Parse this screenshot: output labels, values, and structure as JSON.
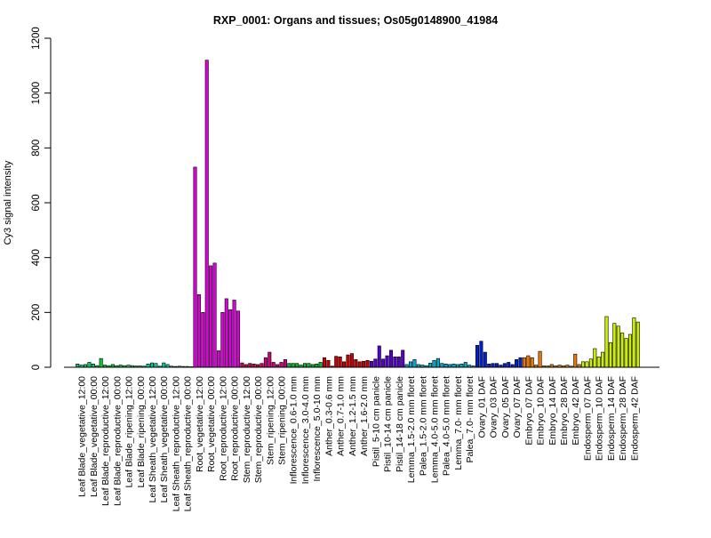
{
  "chart_data": {
    "type": "bar",
    "title": "RXP_0001: Organs and tissues; Os05g0148900_41984",
    "ylabel": "Cy3 signal intensity",
    "xlabel": "",
    "ylim": [
      0,
      1200
    ],
    "yticks": [
      0,
      200,
      400,
      600,
      800,
      1000,
      1200
    ],
    "grid": false,
    "bars": [
      {
        "v": 12,
        "c": "#00cc66"
      },
      {
        "v": 8,
        "c": "#00cc66"
      },
      {
        "v": 10,
        "c": "#00cc66"
      },
      {
        "v": 18,
        "c": "#00cc66"
      },
      {
        "v": 12,
        "c": "#00cc66"
      },
      {
        "v": 6,
        "c": "#00cc66"
      },
      {
        "v": 32,
        "c": "#00cc33"
      },
      {
        "v": 8,
        "c": "#00cc33"
      },
      {
        "v": 6,
        "c": "#00cc33"
      },
      {
        "v": 10,
        "c": "#00cc33"
      },
      {
        "v": 6,
        "c": "#00cc33"
      },
      {
        "v": 8,
        "c": "#00cc33"
      },
      {
        "v": 6,
        "c": "#22cc55"
      },
      {
        "v": 8,
        "c": "#22cc55"
      },
      {
        "v": 6,
        "c": "#22cc55"
      },
      {
        "v": 5,
        "c": "#22cc55"
      },
      {
        "v": 5,
        "c": "#22cc55"
      },
      {
        "v": 4,
        "c": "#22cc55"
      },
      {
        "v": 12,
        "c": "#00cc99"
      },
      {
        "v": 16,
        "c": "#00cc99"
      },
      {
        "v": 14,
        "c": "#00cc99"
      },
      {
        "v": 4,
        "c": "#00cc99"
      },
      {
        "v": 16,
        "c": "#00cc99"
      },
      {
        "v": 10,
        "c": "#00cc99"
      },
      {
        "v": 4,
        "c": "#00ccaa"
      },
      {
        "v": 3,
        "c": "#00ccaa"
      },
      {
        "v": 4,
        "c": "#00ccaa"
      },
      {
        "v": 3,
        "c": "#00ccaa"
      },
      {
        "v": 3,
        "c": "#00ccaa"
      },
      {
        "v": 2,
        "c": "#00ccaa"
      },
      {
        "v": 730,
        "c": "#dd00dd"
      },
      {
        "v": 265,
        "c": "#dd00dd"
      },
      {
        "v": 200,
        "c": "#dd00dd"
      },
      {
        "v": 1120,
        "c": "#dd00dd"
      },
      {
        "v": 370,
        "c": "#dd00dd"
      },
      {
        "v": 380,
        "c": "#dd00dd"
      },
      {
        "v": 60,
        "c": "#dd00dd"
      },
      {
        "v": 200,
        "c": "#dd00dd"
      },
      {
        "v": 250,
        "c": "#dd00dd"
      },
      {
        "v": 210,
        "c": "#dd00dd"
      },
      {
        "v": 245,
        "c": "#dd00dd"
      },
      {
        "v": 205,
        "c": "#dd00dd"
      },
      {
        "v": 16,
        "c": "#cc0044"
      },
      {
        "v": 10,
        "c": "#cc0044"
      },
      {
        "v": 14,
        "c": "#cc0044"
      },
      {
        "v": 12,
        "c": "#cc0044"
      },
      {
        "v": 10,
        "c": "#cc0044"
      },
      {
        "v": 14,
        "c": "#cc0044"
      },
      {
        "v": 35,
        "c": "#cc0077"
      },
      {
        "v": 55,
        "c": "#cc0077"
      },
      {
        "v": 18,
        "c": "#cc0077"
      },
      {
        "v": 10,
        "c": "#cc0077"
      },
      {
        "v": 18,
        "c": "#cc0077"
      },
      {
        "v": 28,
        "c": "#cc0077"
      },
      {
        "v": 14,
        "c": "#00bb22"
      },
      {
        "v": 14,
        "c": "#00bb22"
      },
      {
        "v": 14,
        "c": "#00bb22"
      },
      {
        "v": 8,
        "c": "#00bb22"
      },
      {
        "v": 14,
        "c": "#00bb22"
      },
      {
        "v": 14,
        "c": "#00bb22"
      },
      {
        "v": 10,
        "c": "#00bb22"
      },
      {
        "v": 12,
        "c": "#00bb22"
      },
      {
        "v": 18,
        "c": "#00bb22"
      },
      {
        "v": 35,
        "c": "#cc0000"
      },
      {
        "v": 25,
        "c": "#cc0000"
      },
      {
        "v": 4,
        "c": "#cc0000"
      },
      {
        "v": 40,
        "c": "#cc0000"
      },
      {
        "v": 38,
        "c": "#cc0000"
      },
      {
        "v": 20,
        "c": "#cc0000"
      },
      {
        "v": 45,
        "c": "#cc0000"
      },
      {
        "v": 50,
        "c": "#cc0000"
      },
      {
        "v": 28,
        "c": "#cc0000"
      },
      {
        "v": 20,
        "c": "#cc0000"
      },
      {
        "v": 22,
        "c": "#cc0000"
      },
      {
        "v": 25,
        "c": "#cc0000"
      },
      {
        "v": 22,
        "c": "#5500cc"
      },
      {
        "v": 30,
        "c": "#5500cc"
      },
      {
        "v": 78,
        "c": "#5500cc"
      },
      {
        "v": 30,
        "c": "#5500cc"
      },
      {
        "v": 42,
        "c": "#5500cc"
      },
      {
        "v": 62,
        "c": "#5500cc"
      },
      {
        "v": 38,
        "c": "#5500cc"
      },
      {
        "v": 38,
        "c": "#5500cc"
      },
      {
        "v": 62,
        "c": "#5500cc"
      },
      {
        "v": 10,
        "c": "#00aacc"
      },
      {
        "v": 20,
        "c": "#00aacc"
      },
      {
        "v": 28,
        "c": "#00aacc"
      },
      {
        "v": 10,
        "c": "#00aacc"
      },
      {
        "v": 8,
        "c": "#00aacc"
      },
      {
        "v": 6,
        "c": "#00aacc"
      },
      {
        "v": 15,
        "c": "#00aacc"
      },
      {
        "v": 25,
        "c": "#00aacc"
      },
      {
        "v": 32,
        "c": "#00aacc"
      },
      {
        "v": 14,
        "c": "#00aacc"
      },
      {
        "v": 12,
        "c": "#00aacc"
      },
      {
        "v": 10,
        "c": "#00aacc"
      },
      {
        "v": 12,
        "c": "#00aacc"
      },
      {
        "v": 10,
        "c": "#00aacc"
      },
      {
        "v": 12,
        "c": "#00aacc"
      },
      {
        "v": 18,
        "c": "#00aacc"
      },
      {
        "v": 8,
        "c": "#00aacc"
      },
      {
        "v": 5,
        "c": "#00aacc"
      },
      {
        "v": 80,
        "c": "#0022cc"
      },
      {
        "v": 95,
        "c": "#0022cc"
      },
      {
        "v": 55,
        "c": "#0022cc"
      },
      {
        "v": 12,
        "c": "#0022cc"
      },
      {
        "v": 14,
        "c": "#0022cc"
      },
      {
        "v": 14,
        "c": "#0022cc"
      },
      {
        "v": 8,
        "c": "#0022cc"
      },
      {
        "v": 14,
        "c": "#0022cc"
      },
      {
        "v": 18,
        "c": "#0022cc"
      },
      {
        "v": 10,
        "c": "#0022cc"
      },
      {
        "v": 28,
        "c": "#0022cc"
      },
      {
        "v": 35,
        "c": "#0022cc"
      },
      {
        "v": 35,
        "c": "#ee7700"
      },
      {
        "v": 42,
        "c": "#ee7700"
      },
      {
        "v": 35,
        "c": "#ee7700"
      },
      {
        "v": 8,
        "c": "#ee7700"
      },
      {
        "v": 58,
        "c": "#ee7700"
      },
      {
        "v": 5,
        "c": "#ee7700"
      },
      {
        "v": 5,
        "c": "#ee7700"
      },
      {
        "v": 10,
        "c": "#ee7700"
      },
      {
        "v": 5,
        "c": "#ee7700"
      },
      {
        "v": 8,
        "c": "#ee7700"
      },
      {
        "v": 5,
        "c": "#ee7700"
      },
      {
        "v": 8,
        "c": "#ee7700"
      },
      {
        "v": 4,
        "c": "#ee7700"
      },
      {
        "v": 48,
        "c": "#ee7700"
      },
      {
        "v": 10,
        "c": "#ee7700"
      },
      {
        "v": 20,
        "c": "#ccee00"
      },
      {
        "v": 20,
        "c": "#ccee00"
      },
      {
        "v": 30,
        "c": "#ccee00"
      },
      {
        "v": 68,
        "c": "#ccee00"
      },
      {
        "v": 38,
        "c": "#ccee00"
      },
      {
        "v": 55,
        "c": "#ccee00"
      },
      {
        "v": 185,
        "c": "#ccee00"
      },
      {
        "v": 90,
        "c": "#ccee00"
      },
      {
        "v": 160,
        "c": "#ccee00"
      },
      {
        "v": 150,
        "c": "#ccee00"
      },
      {
        "v": 125,
        "c": "#ccee00"
      },
      {
        "v": 105,
        "c": "#ccee00"
      },
      {
        "v": 120,
        "c": "#ccee00"
      },
      {
        "v": 180,
        "c": "#ccee00"
      },
      {
        "v": 165,
        "c": "#ccee00"
      }
    ],
    "tick_labels": [
      {
        "label": "Leaf Blade_vegetative_12:00",
        "bar": 1
      },
      {
        "label": "Leaf Blade_vegetative_00:00",
        "bar": 4
      },
      {
        "label": "Leaf Blade_reproductive_12:00",
        "bar": 7
      },
      {
        "label": "Leaf Blade_reproductive_00:00",
        "bar": 10
      },
      {
        "label": "Leaf Blade_ripening_12:00",
        "bar": 13
      },
      {
        "label": "Leaf Blade_ripening_00:00",
        "bar": 16
      },
      {
        "label": "Leaf Sheath_vegetative_12:00",
        "bar": 19
      },
      {
        "label": "Leaf Sheath_vegetative_00:00",
        "bar": 22
      },
      {
        "label": "Leaf Sheath_reproductive_12:00",
        "bar": 25
      },
      {
        "label": "Leaf Sheath_reproductive_00:00",
        "bar": 28
      },
      {
        "label": "Root_vegetative_12:00",
        "bar": 31
      },
      {
        "label": "Root_vegetative_00:00",
        "bar": 34
      },
      {
        "label": "Root_reproductive_12:00",
        "bar": 37
      },
      {
        "label": "Root_reproductive_00:00",
        "bar": 40
      },
      {
        "label": "Stem_reproductive_12:00",
        "bar": 43
      },
      {
        "label": "Stem_reproductive_00:00",
        "bar": 46
      },
      {
        "label": "Stem_ripening_12:00",
        "bar": 49
      },
      {
        "label": "Stem_ripening_00:00",
        "bar": 52
      },
      {
        "label": "Inflorescence_0.6-1.0 mm",
        "bar": 55
      },
      {
        "label": "Inflorescence_3.0-4.0 mm",
        "bar": 58
      },
      {
        "label": "Inflorescence_5.0-10 mm",
        "bar": 61
      },
      {
        "label": "Anther_0.3-0.6 mm",
        "bar": 64
      },
      {
        "label": "Anther_0.7-1.0 mm",
        "bar": 67
      },
      {
        "label": "Anther_1.2-1.5 mm",
        "bar": 70
      },
      {
        "label": "Anther_1.6-2.0 mm",
        "bar": 73
      },
      {
        "label": "Pistil_5-10 cm panicle",
        "bar": 76
      },
      {
        "label": "Pistil_10-14 cm panicle",
        "bar": 79
      },
      {
        "label": "Pistil_14-18 cm panicle",
        "bar": 82
      },
      {
        "label": "Lemma_1.5-2.0 mm floret",
        "bar": 85
      },
      {
        "label": "Palea_1.5-2.0 mm floret",
        "bar": 88
      },
      {
        "label": "Lemma_4.0-5.0 mm floret",
        "bar": 91
      },
      {
        "label": "Palea_4.0-5.0 mm floret",
        "bar": 94
      },
      {
        "label": "Lemma_7.0- mm floret",
        "bar": 97
      },
      {
        "label": "Palea_7.0- mm floret",
        "bar": 100
      },
      {
        "label": "Ovary_01 DAF",
        "bar": 103
      },
      {
        "label": "Ovary_03 DAF",
        "bar": 106
      },
      {
        "label": "Ovary_05 DAF",
        "bar": 109
      },
      {
        "label": "Ovary_07 DAF",
        "bar": 112
      },
      {
        "label": "Embryo_07 DAF",
        "bar": 115
      },
      {
        "label": "Embryo_10 DAF",
        "bar": 118
      },
      {
        "label": "Embryo_14 DAF",
        "bar": 121
      },
      {
        "label": "Embryo_28 DAF",
        "bar": 124
      },
      {
        "label": "Embryo_42 DAF",
        "bar": 127
      },
      {
        "label": "Endosperm_07 DAF",
        "bar": 130
      },
      {
        "label": "Endosperm_10 DAF",
        "bar": 133
      },
      {
        "label": "Endosperm_14 DAF",
        "bar": 136
      },
      {
        "label": "Endosperm_28 DAF",
        "bar": 139
      },
      {
        "label": "Endosperm_42 DAF",
        "bar": 142
      }
    ]
  }
}
